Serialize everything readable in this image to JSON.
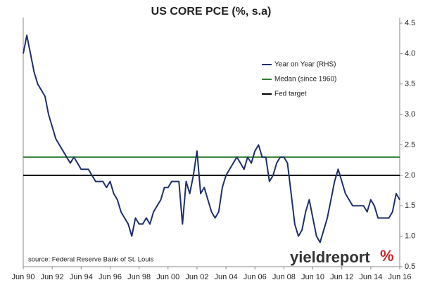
{
  "chart_data": {
    "type": "line",
    "title": "US CORE PCE (%, s.a)",
    "categories": [
      "Jun 90",
      null,
      null,
      null,
      null,
      null,
      null,
      null,
      "Jun 92",
      null,
      null,
      null,
      null,
      null,
      null,
      null,
      "Jun 94",
      null,
      null,
      null,
      null,
      null,
      null,
      null,
      "Jun 96",
      null,
      null,
      null,
      null,
      null,
      null,
      null,
      "Jun 98",
      null,
      null,
      null,
      null,
      null,
      null,
      null,
      "Jun 00",
      null,
      null,
      null,
      null,
      null,
      null,
      null,
      "Jun 02",
      null,
      null,
      null,
      null,
      null,
      null,
      null,
      "Jun 04",
      null,
      null,
      null,
      null,
      null,
      null,
      null,
      "Jun 06",
      null,
      null,
      null,
      null,
      null,
      null,
      null,
      "Jun 08",
      null,
      null,
      null,
      null,
      null,
      null,
      null,
      "Jun 10",
      null,
      null,
      null,
      null,
      null,
      null,
      null,
      "Jun 12",
      null,
      null,
      null,
      null,
      null,
      null,
      null,
      "Jun 14",
      null,
      null,
      null,
      null,
      null,
      null,
      null,
      "Jun 16"
    ],
    "series": [
      {
        "name": "Year on Year (RHS)",
        "color": "#1f2f6b",
        "axis": "y2",
        "values": [
          4.0,
          4.3,
          4.0,
          3.7,
          3.5,
          3.4,
          3.3,
          3.0,
          2.8,
          2.6,
          2.5,
          2.4,
          2.3,
          2.2,
          2.3,
          2.2,
          2.1,
          2.1,
          2.1,
          2.0,
          1.9,
          1.9,
          1.9,
          1.8,
          1.9,
          1.7,
          1.6,
          1.4,
          1.3,
          1.2,
          1.0,
          1.3,
          1.2,
          1.2,
          1.3,
          1.2,
          1.4,
          1.5,
          1.6,
          1.8,
          1.8,
          1.9,
          1.9,
          1.9,
          1.2,
          1.9,
          1.7,
          2.0,
          2.4,
          1.7,
          1.8,
          1.6,
          1.4,
          1.3,
          1.4,
          1.8,
          2.0,
          2.1,
          2.2,
          2.3,
          2.2,
          2.1,
          2.3,
          2.2,
          2.4,
          2.5,
          2.3,
          2.3,
          1.9,
          2.0,
          2.2,
          2.3,
          2.3,
          2.2,
          1.7,
          1.2,
          1.0,
          1.1,
          1.4,
          1.6,
          1.3,
          1.0,
          0.9,
          1.1,
          1.3,
          1.6,
          1.9,
          2.1,
          1.9,
          1.7,
          1.6,
          1.5,
          1.5,
          1.5,
          1.5,
          1.4,
          1.6,
          1.5,
          1.3,
          1.3,
          1.3,
          1.3,
          1.4,
          1.7,
          1.6
        ]
      }
    ],
    "hlines": [
      {
        "name": "Medan (since 1960)",
        "color": "#2e7d32",
        "value": 2.3
      },
      {
        "name": "Fed target",
        "color": "#000000",
        "value": 2.0
      }
    ],
    "y2lim": [
      0.5,
      4.5
    ],
    "y2ticks": [
      0.5,
      {
        "value": 1,
        "label": "1.0"
      },
      1.5,
      {
        "value": 2,
        "label": "2.0"
      },
      2.5,
      {
        "value": 3,
        "label": "3.0"
      },
      3.5,
      {
        "value": 4,
        "label": "4.0"
      },
      4.5
    ],
    "grid": false,
    "legend": "top-right",
    "source": "source: Federal Reserve Bank of St. Louis",
    "logo": "yieldreport",
    "logo_mark": "%"
  }
}
